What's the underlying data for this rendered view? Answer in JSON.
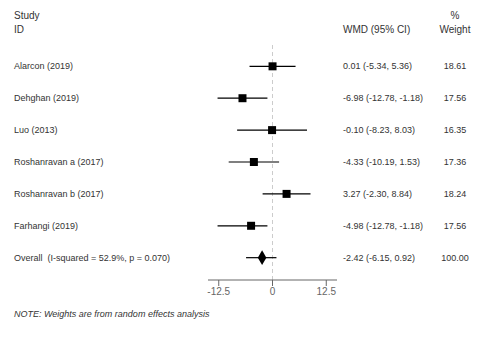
{
  "chart_data": {
    "type": "forest",
    "categories": [
      "Alarcon (2019)",
      "Dehghan (2019)",
      "Luo (2013)",
      "Roshanravan a (2017)",
      "Roshanravan b (2017)",
      "Farhangi (2019)",
      "Overall  (I-squared = 52.9%, p = 0.070)"
    ],
    "value_labels": [
      "0.01 (-5.34, 5.36)",
      "-6.98 (-12.78, -1.18)",
      "-0.10 (-8.23, 8.03)",
      "-4.33 (-10.19, 1.53)",
      "3.27 (-2.30, 8.84)",
      "-4.98 (-12.78, -1.18)",
      "-2.42 (-6.15, 0.92)"
    ],
    "weights": [
      18.61,
      17.56,
      16.35,
      17.36,
      18.24,
      17.56,
      100
    ],
    "weight_labels": [
      "18.61",
      "17.56",
      "16.35",
      "17.36",
      "18.24",
      "17.56",
      "100.00"
    ],
    "series": [
      {
        "marker": "square",
        "color": "#000000",
        "values": [
          0.01,
          -6.98,
          -0.1,
          -4.33,
          3.27,
          -4.98,
          null
        ],
        "ci_low": [
          -5.34,
          -12.78,
          -8.23,
          -10.19,
          -2.3,
          -12.78,
          null
        ],
        "ci_high": [
          5.36,
          -1.18,
          8.03,
          1.53,
          8.84,
          -1.18,
          null
        ]
      },
      {
        "marker": "diamond",
        "color": "#000000",
        "values": [
          null,
          null,
          null,
          null,
          null,
          null,
          -2.42
        ],
        "ci_low": [
          null,
          null,
          null,
          null,
          null,
          null,
          -6.15
        ],
        "ci_high": [
          null,
          null,
          null,
          null,
          null,
          null,
          0.92
        ]
      }
    ],
    "headers": {
      "study": "Study",
      "id": "ID",
      "wmd": "WMD (95% CI)",
      "pct": "%",
      "weight": "Weight"
    },
    "note": "NOTE: Weights are from random effects analysis",
    "xlim": [
      -15,
      15
    ],
    "xticks": [
      -12.5,
      0,
      12.5
    ],
    "grid": false
  }
}
